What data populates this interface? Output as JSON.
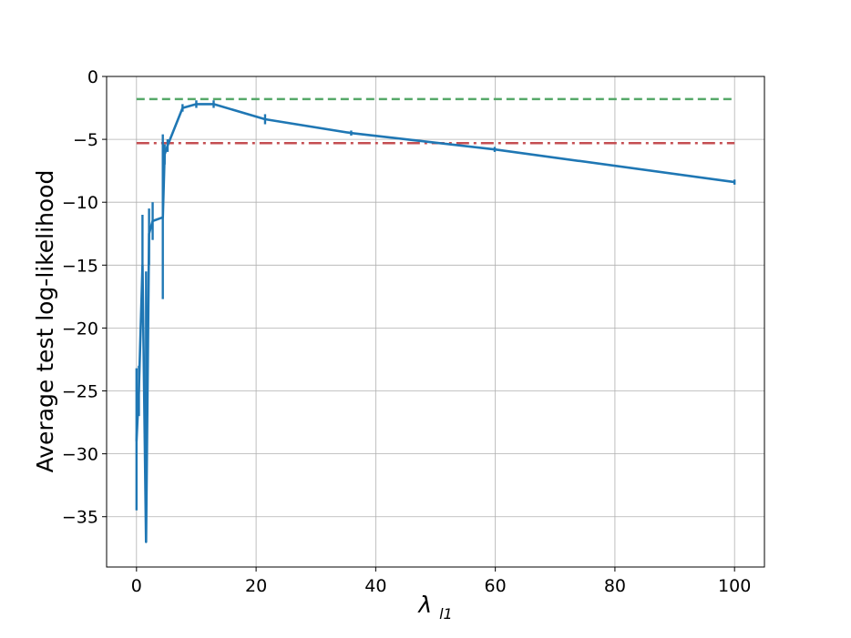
{
  "chart_data": {
    "type": "line",
    "ylabel": "Average test log-likelihood",
    "xlabel_symbol": "λ",
    "xlabel_subscript": "l1",
    "xlim": [
      -5,
      105
    ],
    "ylim": [
      -39,
      0
    ],
    "xticks": [
      0,
      20,
      40,
      60,
      80,
      100
    ],
    "yticks": [
      0,
      -5,
      -10,
      -15,
      -20,
      -25,
      -30,
      -35
    ],
    "grid": true,
    "series": [
      {
        "color": "#1f77b4",
        "style": "solid",
        "points": [
          {
            "x": 0.0,
            "y": -29.0,
            "err_low": -34.5,
            "err_high": -23.2
          },
          {
            "x": 0.4,
            "y": -25.0,
            "err_low": -27.0,
            "err_high": -23.0
          },
          {
            "x": 1.0,
            "y": -15.0,
            "err_low": -19.0,
            "err_high": -11.0
          },
          {
            "x": 1.6,
            "y": -37.0,
            "err_low": -37.0,
            "err_high": -15.5
          },
          {
            "x": 2.1,
            "y": -12.5,
            "err_low": -15.0,
            "err_high": -10.5
          },
          {
            "x": 2.7,
            "y": -11.5,
            "err_low": -13.0,
            "err_high": -10.0
          },
          {
            "x": 4.4,
            "y": -11.2,
            "err_low": -17.7,
            "err_high": -4.6
          },
          {
            "x": 4.7,
            "y": -6.2,
            "err_low": -7.0,
            "err_high": -5.4
          },
          {
            "x": 5.2,
            "y": -5.5,
            "err_low": -6.0,
            "err_high": -5.0
          },
          {
            "x": 7.7,
            "y": -2.5,
            "err_low": -2.8,
            "err_high": -2.2
          },
          {
            "x": 10.0,
            "y": -2.2,
            "err_low": -2.5,
            "err_high": -1.9
          },
          {
            "x": 12.9,
            "y": -2.2,
            "err_low": -2.5,
            "err_high": -1.9
          },
          {
            "x": 21.5,
            "y": -3.4,
            "err_low": -3.8,
            "err_high": -3.0
          },
          {
            "x": 35.9,
            "y": -4.5,
            "err_low": -4.7,
            "err_high": -4.3
          },
          {
            "x": 59.9,
            "y": -5.8,
            "err_low": -6.0,
            "err_high": -5.6
          },
          {
            "x": 100.0,
            "y": -8.4,
            "err_low": -8.6,
            "err_high": -8.2
          }
        ]
      }
    ],
    "reference_lines": [
      {
        "y": -1.8,
        "color": "#55a868",
        "style": "dashed",
        "x_range": [
          0,
          100
        ]
      },
      {
        "y": -5.3,
        "color": "#c44e52",
        "style": "dashdot",
        "x_range": [
          0,
          100
        ]
      }
    ]
  }
}
